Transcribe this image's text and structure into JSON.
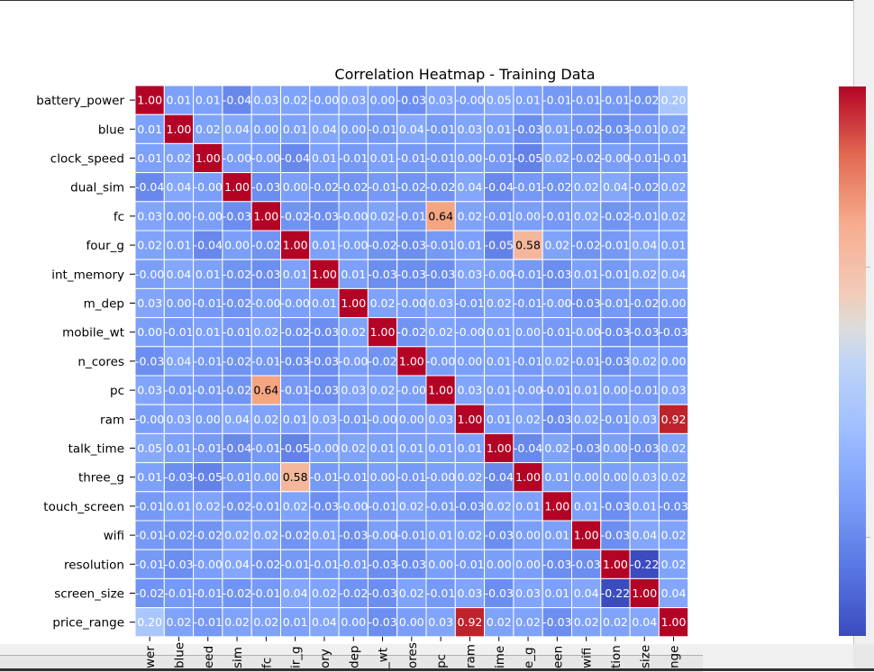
{
  "chart_data": {
    "type": "heatmap",
    "title": "Correlation Heatmap - Training Data",
    "labels": [
      "battery_power",
      "blue",
      "clock_speed",
      "dual_sim",
      "fc",
      "four_g",
      "int_memory",
      "m_dep",
      "mobile_wt",
      "n_cores",
      "pc",
      "ram",
      "talk_time",
      "three_g",
      "touch_screen",
      "wifi",
      "resolution",
      "screen_size",
      "price_range"
    ],
    "x_tick_labels_visible": [
      "wer",
      "blue",
      "eed",
      "sim",
      "fc",
      "ir_g",
      "ory",
      "dep",
      "_wt",
      "ores",
      "pc",
      "ram",
      "ime",
      "e_g",
      "een",
      "wifi",
      "tion",
      "size",
      "nge"
    ],
    "cell_labels": [
      [
        "1.00",
        "0.01",
        "0.01",
        "-0.04",
        "0.03",
        "0.02",
        "-0.00",
        "0.03",
        "0.00",
        "-0.03",
        "0.03",
        "-0.00",
        "0.05",
        "0.01",
        "-0.01",
        "-0.01",
        "-0.01",
        "-0.02",
        "0.20"
      ],
      [
        "0.01",
        "1.00",
        "0.02",
        "0.04",
        "0.00",
        "0.01",
        "0.04",
        "0.00",
        "-0.01",
        "0.04",
        "-0.01",
        "0.03",
        "0.01",
        "-0.03",
        "0.01",
        "-0.02",
        "-0.03",
        "-0.01",
        "0.02"
      ],
      [
        "0.01",
        "0.02",
        "1.00",
        "-0.00",
        "-0.00",
        "-0.04",
        "0.01",
        "-0.01",
        "0.01",
        "-0.01",
        "-0.01",
        "0.00",
        "-0.01",
        "-0.05",
        "0.02",
        "-0.02",
        "-0.00",
        "-0.01",
        "-0.01"
      ],
      [
        "-0.04",
        "0.04",
        "-0.00",
        "1.00",
        "-0.03",
        "0.00",
        "-0.02",
        "-0.02",
        "-0.01",
        "-0.02",
        "-0.02",
        "0.04",
        "-0.04",
        "-0.01",
        "-0.02",
        "0.02",
        "0.04",
        "-0.02",
        "0.02"
      ],
      [
        "0.03",
        "0.00",
        "-0.00",
        "-0.03",
        "1.00",
        "-0.02",
        "-0.03",
        "-0.00",
        "0.02",
        "-0.01",
        "0.64",
        "0.02",
        "-0.01",
        "0.00",
        "-0.01",
        "0.02",
        "-0.02",
        "-0.01",
        "0.02"
      ],
      [
        "0.02",
        "0.01",
        "-0.04",
        "0.00",
        "-0.02",
        "1.00",
        "0.01",
        "-0.00",
        "-0.02",
        "-0.03",
        "-0.01",
        "0.01",
        "-0.05",
        "0.58",
        "0.02",
        "-0.02",
        "-0.01",
        "0.04",
        "0.01"
      ],
      [
        "-0.00",
        "0.04",
        "0.01",
        "-0.02",
        "-0.03",
        "0.01",
        "1.00",
        "0.01",
        "-0.03",
        "-0.03",
        "-0.03",
        "0.03",
        "-0.00",
        "-0.01",
        "-0.03",
        "0.01",
        "-0.01",
        "0.02",
        "0.04"
      ],
      [
        "0.03",
        "0.00",
        "-0.01",
        "-0.02",
        "-0.00",
        "-0.00",
        "0.01",
        "1.00",
        "0.02",
        "-0.00",
        "0.03",
        "-0.01",
        "0.02",
        "-0.01",
        "-0.00",
        "-0.03",
        "-0.01",
        "-0.02",
        "0.00"
      ],
      [
        "0.00",
        "-0.01",
        "0.01",
        "-0.01",
        "0.02",
        "-0.02",
        "-0.03",
        "0.02",
        "1.00",
        "-0.02",
        "0.02",
        "-0.00",
        "0.01",
        "0.00",
        "-0.01",
        "-0.00",
        "-0.03",
        "-0.03",
        "-0.03"
      ],
      [
        "-0.03",
        "0.04",
        "-0.01",
        "-0.02",
        "-0.01",
        "-0.03",
        "-0.03",
        "-0.00",
        "-0.02",
        "1.00",
        "-0.00",
        "0.00",
        "0.01",
        "-0.01",
        "0.02",
        "-0.01",
        "-0.03",
        "0.02",
        "0.00"
      ],
      [
        "0.03",
        "-0.01",
        "-0.01",
        "-0.02",
        "0.64",
        "-0.01",
        "-0.03",
        "0.03",
        "0.02",
        "-0.00",
        "1.00",
        "0.03",
        "0.01",
        "-0.00",
        "-0.01",
        "0.01",
        "0.00",
        "-0.01",
        "0.03"
      ],
      [
        "-0.00",
        "0.03",
        "0.00",
        "0.04",
        "0.02",
        "0.01",
        "0.03",
        "-0.01",
        "-0.00",
        "0.00",
        "0.03",
        "1.00",
        "0.01",
        "0.02",
        "-0.03",
        "0.02",
        "-0.01",
        "0.03",
        "0.92"
      ],
      [
        "0.05",
        "0.01",
        "-0.01",
        "-0.04",
        "-0.01",
        "-0.05",
        "-0.00",
        "0.02",
        "0.01",
        "0.01",
        "0.01",
        "0.01",
        "1.00",
        "-0.04",
        "0.02",
        "-0.03",
        "0.00",
        "-0.03",
        "0.02"
      ],
      [
        "0.01",
        "-0.03",
        "-0.05",
        "-0.01",
        "0.00",
        "0.58",
        "-0.01",
        "-0.01",
        "0.00",
        "-0.01",
        "-0.00",
        "0.02",
        "-0.04",
        "1.00",
        "0.01",
        "0.00",
        "0.00",
        "0.03",
        "0.02"
      ],
      [
        "-0.01",
        "0.01",
        "0.02",
        "-0.02",
        "-0.01",
        "0.02",
        "-0.03",
        "-0.00",
        "-0.01",
        "0.02",
        "-0.01",
        "-0.03",
        "0.02",
        "0.01",
        "1.00",
        "0.01",
        "-0.03",
        "0.01",
        "-0.03"
      ],
      [
        "-0.01",
        "-0.02",
        "-0.02",
        "0.02",
        "0.02",
        "-0.02",
        "0.01",
        "-0.03",
        "-0.00",
        "-0.01",
        "0.01",
        "0.02",
        "-0.03",
        "0.00",
        "0.01",
        "1.00",
        "-0.03",
        "0.04",
        "0.02"
      ],
      [
        "-0.01",
        "-0.03",
        "-0.00",
        "0.04",
        "-0.02",
        "-0.01",
        "-0.01",
        "-0.01",
        "-0.03",
        "-0.03",
        "0.00",
        "-0.01",
        "0.00",
        "0.00",
        "-0.03",
        "-0.03",
        "1.00",
        "-0.22",
        "0.02"
      ],
      [
        "-0.02",
        "-0.01",
        "-0.01",
        "-0.02",
        "-0.01",
        "0.04",
        "0.02",
        "-0.02",
        "-0.03",
        "0.02",
        "-0.01",
        "0.03",
        "-0.03",
        "0.03",
        "0.01",
        "0.04",
        "-0.22",
        "1.00",
        "0.04"
      ],
      [
        "0.20",
        "0.02",
        "-0.01",
        "0.02",
        "0.02",
        "0.01",
        "0.04",
        "0.00",
        "-0.03",
        "0.00",
        "0.03",
        "0.92",
        "0.02",
        "0.02",
        "-0.03",
        "0.02",
        "0.02",
        "0.04",
        "1.00"
      ]
    ],
    "colormap": "coolwarm",
    "vmin": -0.22,
    "vmax": 1.0,
    "colorbar": true,
    "colors": {
      "low": "#3b4cc0",
      "mid": "#dddddd",
      "high": "#b40426",
      "grid": "#ffffff"
    }
  }
}
